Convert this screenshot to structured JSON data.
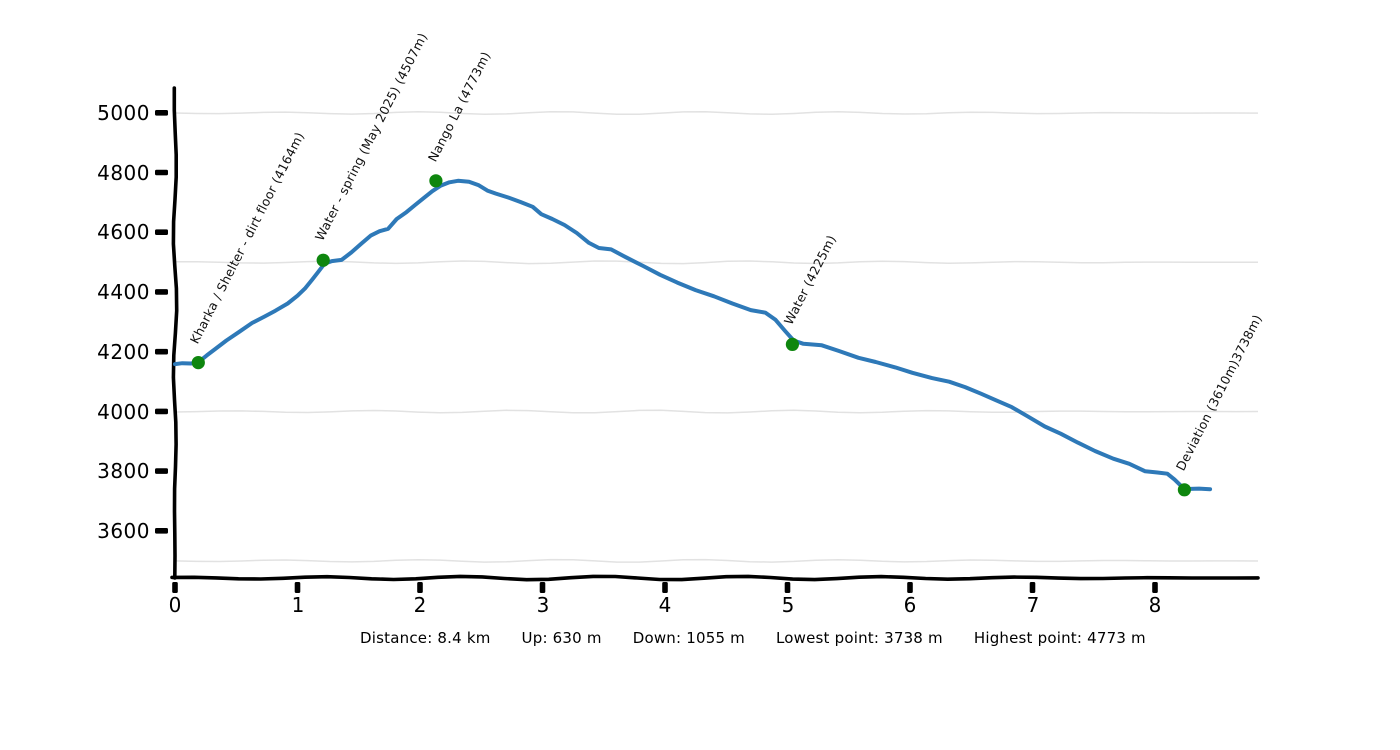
{
  "chart_data": {
    "type": "line",
    "title": "",
    "xlabel": "",
    "ylabel": "",
    "x_unit": "km",
    "y_unit": "m",
    "xlim": [
      0,
      8.85
    ],
    "ylim": [
      3440,
      5085
    ],
    "x_ticks": [
      0,
      1,
      2,
      3,
      4,
      5,
      6,
      7,
      8
    ],
    "y_ticks": [
      3600,
      3800,
      4000,
      4200,
      4400,
      4600,
      4800,
      5000
    ],
    "gridlines_y": [
      3500,
      4000,
      4500,
      5000
    ],
    "grid": "on",
    "legend": "none",
    "line_color": "#2e79b8",
    "marker_color": "#0e860e",
    "axis_color": "#000000",
    "grid_color": "#e2e2e2",
    "series": [
      {
        "name": "elevation-profile",
        "points": [
          [
            0.0,
            4159
          ],
          [
            0.06,
            4162
          ],
          [
            0.13,
            4161
          ],
          [
            0.19,
            4165
          ],
          [
            0.26,
            4188
          ],
          [
            0.33,
            4210
          ],
          [
            0.42,
            4238
          ],
          [
            0.52,
            4266
          ],
          [
            0.63,
            4297
          ],
          [
            0.73,
            4318
          ],
          [
            0.82,
            4338
          ],
          [
            0.92,
            4362
          ],
          [
            1.0,
            4388
          ],
          [
            1.06,
            4412
          ],
          [
            1.12,
            4442
          ],
          [
            1.17,
            4468
          ],
          [
            1.22,
            4495
          ],
          [
            1.28,
            4504
          ],
          [
            1.36,
            4508
          ],
          [
            1.44,
            4533
          ],
          [
            1.52,
            4562
          ],
          [
            1.6,
            4590
          ],
          [
            1.67,
            4604
          ],
          [
            1.74,
            4612
          ],
          [
            1.81,
            4645
          ],
          [
            1.89,
            4668
          ],
          [
            1.96,
            4692
          ],
          [
            2.03,
            4715
          ],
          [
            2.1,
            4738
          ],
          [
            2.17,
            4757
          ],
          [
            2.24,
            4768
          ],
          [
            2.31,
            4773
          ],
          [
            2.4,
            4770
          ],
          [
            2.48,
            4758
          ],
          [
            2.55,
            4740
          ],
          [
            2.62,
            4730
          ],
          [
            2.72,
            4717
          ],
          [
            2.82,
            4702
          ],
          [
            2.92,
            4686
          ],
          [
            2.99,
            4661
          ],
          [
            3.08,
            4645
          ],
          [
            3.18,
            4625
          ],
          [
            3.28,
            4598
          ],
          [
            3.38,
            4565
          ],
          [
            3.46,
            4548
          ],
          [
            3.56,
            4543
          ],
          [
            3.68,
            4517
          ],
          [
            3.82,
            4488
          ],
          [
            3.96,
            4458
          ],
          [
            4.1,
            4432
          ],
          [
            4.25,
            4407
          ],
          [
            4.4,
            4386
          ],
          [
            4.55,
            4362
          ],
          [
            4.7,
            4340
          ],
          [
            4.82,
            4331
          ],
          [
            4.9,
            4308
          ],
          [
            4.98,
            4270
          ],
          [
            5.05,
            4238
          ],
          [
            5.13,
            4227
          ],
          [
            5.28,
            4222
          ],
          [
            5.42,
            4203
          ],
          [
            5.58,
            4180
          ],
          [
            5.72,
            4166
          ],
          [
            5.88,
            4148
          ],
          [
            6.02,
            4130
          ],
          [
            6.18,
            4112
          ],
          [
            6.32,
            4100
          ],
          [
            6.45,
            4082
          ],
          [
            6.58,
            4060
          ],
          [
            6.7,
            4038
          ],
          [
            6.83,
            4015
          ],
          [
            6.96,
            3984
          ],
          [
            7.1,
            3950
          ],
          [
            7.23,
            3926
          ],
          [
            7.37,
            3896
          ],
          [
            7.51,
            3868
          ],
          [
            7.66,
            3842
          ],
          [
            7.79,
            3825
          ],
          [
            7.92,
            3800
          ],
          [
            8.02,
            3796
          ],
          [
            8.1,
            3792
          ],
          [
            8.16,
            3772
          ],
          [
            8.22,
            3748
          ],
          [
            8.24,
            3738
          ],
          [
            8.29,
            3741
          ],
          [
            8.36,
            3742
          ],
          [
            8.45,
            3740
          ]
        ]
      }
    ],
    "waypoints": [
      {
        "label": "Kharka / Shelter - dirt floor (4164m)",
        "km": 0.19,
        "elevation": 4164
      },
      {
        "label": "Water - spring (May 2025) (4507m)",
        "km": 1.21,
        "elevation": 4507
      },
      {
        "label": "Nango La (4773m)",
        "km": 2.13,
        "elevation": 4773
      },
      {
        "label": "Water (4225m)",
        "km": 5.04,
        "elevation": 4225
      },
      {
        "label": "Deviation (3610m)3738m)",
        "km": 8.24,
        "elevation": 3738
      }
    ]
  },
  "footer": {
    "distance": "Distance: 8.4 km",
    "up": "Up: 630 m",
    "down": "Down: 1055 m",
    "lowest": "Lowest point: 3738 m",
    "highest": "Highest point: 4773 m"
  }
}
